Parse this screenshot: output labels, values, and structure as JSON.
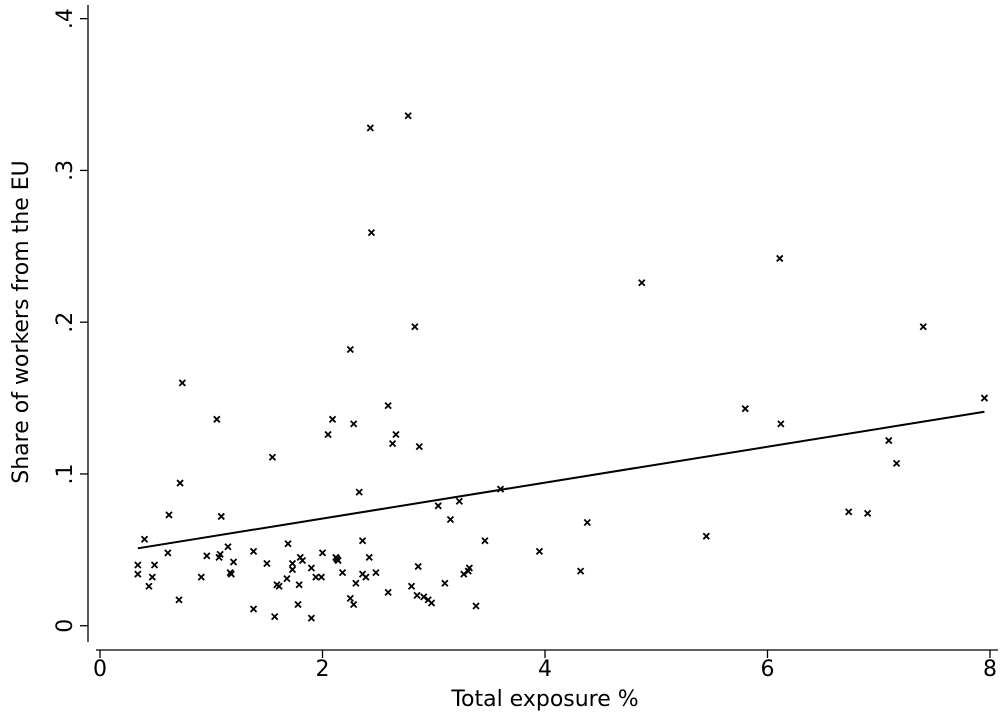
{
  "chart_data": {
    "type": "scatter",
    "x_label": "Total exposure %",
    "y_label": "Share of workers from the EU",
    "xlim": [
      -0.108,
      8.09
    ],
    "ylim": [
      -0.016,
      0.409
    ],
    "xticks": [
      0,
      2,
      4,
      6,
      8
    ],
    "yticks": [
      0,
      {
        "value": 0.1,
        "label": ".1"
      },
      {
        "value": 0.2,
        "label": ".2"
      },
      {
        "value": 0.3,
        "label": ".3"
      },
      {
        "value": 0.4,
        "label": ".4"
      }
    ],
    "grid": false,
    "series": [
      {
        "type": "scatter",
        "marker": "x",
        "color": "#000000",
        "x": [
          0.34,
          0.34,
          0.4,
          0.44,
          0.47,
          0.49,
          0.61,
          0.62,
          0.71,
          0.72,
          0.74,
          0.91,
          0.96,
          1.05,
          1.07,
          1.08,
          1.09,
          1.15,
          1.17,
          1.18,
          1.2,
          1.38,
          1.38,
          1.5,
          1.55,
          1.57,
          1.59,
          1.61,
          1.68,
          1.69,
          1.73,
          1.73,
          1.78,
          1.79,
          1.8,
          1.82,
          1.9,
          1.9,
          1.94,
          1.99,
          2.0,
          2.05,
          2.09,
          2.12,
          2.13,
          2.14,
          2.18,
          2.25,
          2.25,
          2.28,
          2.28,
          2.3,
          2.33,
          2.36,
          2.36,
          2.39,
          2.42,
          2.43,
          2.44,
          2.48,
          2.59,
          2.59,
          2.63,
          2.66,
          2.77,
          2.8,
          2.83,
          2.85,
          2.86,
          2.87,
          2.91,
          2.95,
          2.98,
          3.04,
          3.1,
          3.15,
          3.23,
          3.27,
          3.31,
          3.32,
          3.38,
          3.46,
          3.6,
          3.95,
          4.32,
          4.38,
          4.87,
          5.45,
          5.8,
          6.11,
          6.12,
          6.73,
          6.9,
          7.09,
          7.16,
          7.4,
          7.95
        ],
        "values": [
          0.04,
          0.034,
          0.057,
          0.026,
          0.032,
          0.04,
          0.048,
          0.073,
          0.017,
          0.094,
          0.16,
          0.032,
          0.046,
          0.136,
          0.045,
          0.047,
          0.072,
          0.052,
          0.035,
          0.034,
          0.042,
          0.049,
          0.011,
          0.041,
          0.111,
          0.006,
          0.027,
          0.026,
          0.031,
          0.054,
          0.041,
          0.037,
          0.014,
          0.027,
          0.045,
          0.043,
          0.005,
          0.038,
          0.032,
          0.032,
          0.048,
          0.126,
          0.136,
          0.045,
          0.044,
          0.043,
          0.035,
          0.182,
          0.018,
          0.014,
          0.133,
          0.028,
          0.088,
          0.056,
          0.034,
          0.032,
          0.045,
          0.328,
          0.259,
          0.035,
          0.145,
          0.022,
          0.12,
          0.126,
          0.336,
          0.026,
          0.197,
          0.02,
          0.039,
          0.118,
          0.019,
          0.017,
          0.015,
          0.079,
          0.028,
          0.07,
          0.082,
          0.034,
          0.036,
          0.038,
          0.013,
          0.056,
          0.09,
          0.049,
          0.036,
          0.068,
          0.226,
          0.059,
          0.143,
          0.242,
          0.133,
          0.075,
          0.074,
          0.122,
          0.107,
          0.197,
          0.15
        ]
      },
      {
        "type": "line",
        "color": "#000000",
        "x": [
          0.34,
          7.95
        ],
        "values": [
          0.051,
          0.141
        ]
      }
    ]
  }
}
